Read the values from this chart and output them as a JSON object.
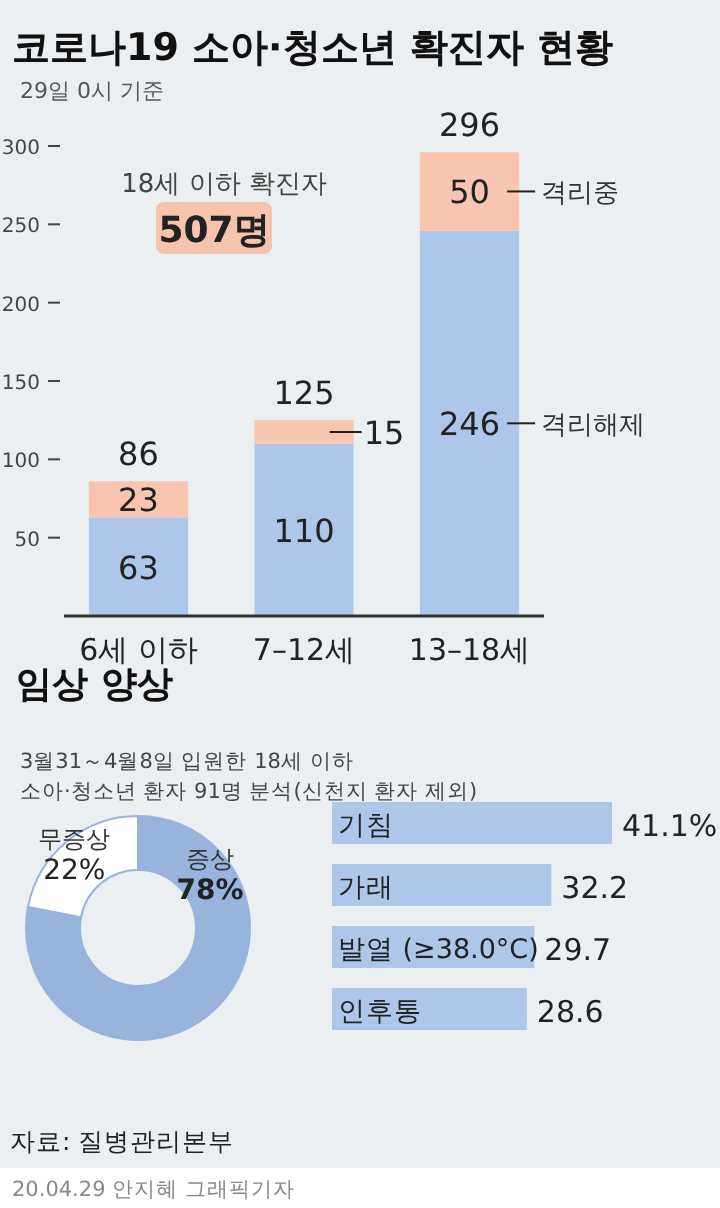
{
  "chart_data": [
    {
      "type": "bar",
      "title": "코로나19 소아·청소년 확진자 현황",
      "subtitle": "29일 0시 기준",
      "categories": [
        "6세 이하",
        "7–12세",
        "13–18세"
      ],
      "stacked": true,
      "ylim": [
        0,
        300
      ],
      "yticks": [
        50,
        100,
        150,
        200,
        250,
        300
      ],
      "grid": false,
      "data_labels": true,
      "totals": [
        "86",
        "125",
        "296"
      ],
      "annotations": [
        "18세 이하 확진자",
        "507명"
      ],
      "series": [
        {
          "name": "격리해제",
          "color": "#aec6e8",
          "values": [
            63,
            110,
            246
          ]
        },
        {
          "name": "격리중",
          "color": "#f8c5b0",
          "values": [
            23,
            15,
            50
          ]
        }
      ]
    },
    {
      "type": "donut",
      "title": "임상 양상",
      "subtitle": "3월31～4월8일 입원한 18세 이하\n소아·청소년 환자 91명 분석(신천지 환자 제외)",
      "categories": [
        "증상",
        "무증상"
      ],
      "values": [
        78,
        22
      ],
      "colors": [
        "#98b4dc",
        "#ffffff"
      ],
      "value_labels": [
        "78%",
        "22%"
      ]
    },
    {
      "type": "bar",
      "orientation": "horizontal",
      "categories": [
        "기침",
        "가래",
        "발열 (≥38.0°C)",
        "인후통"
      ],
      "values": [
        41.1,
        32.2,
        29.7,
        28.6
      ],
      "color": "#aec6e8",
      "value_labels": [
        "41.1%",
        "32.2",
        "29.7",
        "28.6"
      ],
      "annotations": [
        "자료: 질병관리본부",
        "20.04.29 안지혜 그래픽기자"
      ]
    }
  ]
}
